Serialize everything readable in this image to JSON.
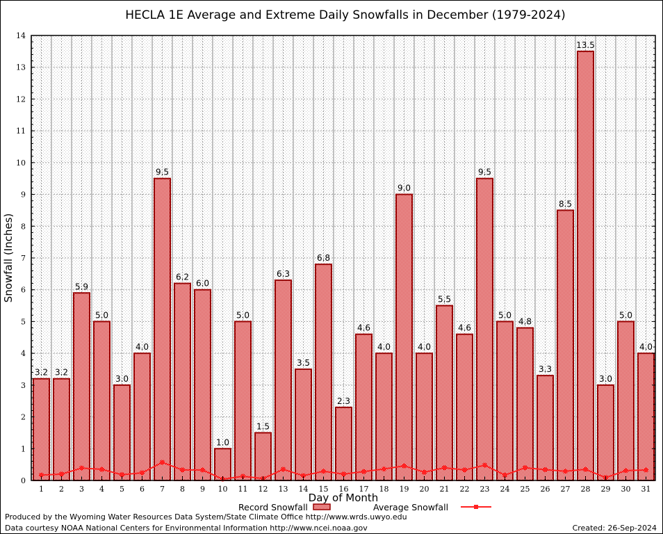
{
  "chart_data": {
    "type": "bar",
    "title": "HECLA 1E Average and Extreme Daily Snowfalls in December (1979-2024)",
    "xlabel": "Day of Month",
    "ylabel": "Snowfall (Inches)",
    "ylim": [
      0,
      14
    ],
    "yticks": [
      0,
      1,
      2,
      3,
      4,
      5,
      6,
      7,
      8,
      9,
      10,
      11,
      12,
      13,
      14
    ],
    "grid": true,
    "legend_position": "bottom",
    "categories": [
      1,
      2,
      3,
      4,
      5,
      6,
      7,
      8,
      9,
      10,
      11,
      12,
      13,
      14,
      15,
      16,
      17,
      18,
      19,
      20,
      21,
      22,
      23,
      24,
      25,
      26,
      27,
      28,
      29,
      30,
      31
    ],
    "series": [
      {
        "name": "Record Snowfall",
        "type": "bar",
        "color": "#cc0000",
        "values": [
          3.2,
          3.2,
          5.9,
          5.0,
          3.0,
          4.0,
          9.5,
          6.2,
          6.0,
          1.0,
          5.0,
          1.5,
          6.3,
          3.5,
          6.8,
          2.3,
          4.6,
          4.0,
          9.0,
          4.0,
          5.5,
          4.6,
          9.5,
          5.0,
          4.8,
          3.3,
          8.5,
          13.5,
          3.0,
          5.0,
          4.0
        ],
        "labels": [
          "3.2",
          "3.2",
          "5.9",
          "5.0",
          "3.0",
          "4.0",
          "9.5",
          "6.2",
          "6.0",
          "1.0",
          "5.0",
          "1.5",
          "6.3",
          "3.5",
          "6.8",
          "2.3",
          "4.6",
          "4.0",
          "9.0",
          "4.0",
          "5.5",
          "4.6",
          "9.5",
          "5.0",
          "4.8",
          "3.3",
          "8.5",
          "13.5",
          "3.0",
          "5.0",
          "4.0"
        ]
      },
      {
        "name": "Average Snowfall",
        "type": "line",
        "color": "#ff2222",
        "values": [
          0.17,
          0.2,
          0.39,
          0.35,
          0.18,
          0.24,
          0.57,
          0.33,
          0.33,
          0.04,
          0.13,
          0.06,
          0.35,
          0.15,
          0.29,
          0.2,
          0.28,
          0.36,
          0.46,
          0.26,
          0.4,
          0.33,
          0.48,
          0.17,
          0.4,
          0.34,
          0.29,
          0.35,
          0.09,
          0.31,
          0.33
        ]
      }
    ]
  },
  "footer": {
    "produced_by": "Produced by the Wyoming Water Resources Data System/State Climate Office http://www.wrds.uwyo.edu",
    "data_courtesy": "Data courtesy NOAA National Centers for Environmental Information http://www.ncei.noaa.gov",
    "created": "Created: 26-Sep-2024"
  }
}
